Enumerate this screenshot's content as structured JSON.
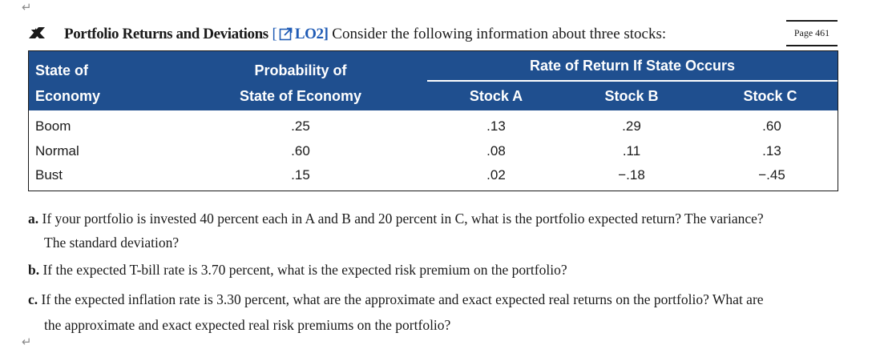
{
  "page_label": "Page 461",
  "heading": {
    "title": "Portfolio Returns and Deviations",
    "lo_open": "[",
    "lo_label": "LO2]",
    "text": "Consider the following information about three stocks:"
  },
  "table": {
    "header": {
      "col0_line1": "State of",
      "col0_line2": "Economy",
      "col1_line1": "Probability of",
      "col1_line2": "State of Economy",
      "group": "Rate of Return If State Occurs",
      "stock_a": "Stock A",
      "stock_b": "Stock B",
      "stock_c": "Stock C"
    },
    "rows": [
      {
        "state": "Boom",
        "prob": ".25",
        "a": ".13",
        "b": ".29",
        "c": ".60"
      },
      {
        "state": "Normal",
        "prob": ".60",
        "a": ".08",
        "b": ".11",
        "c": ".13"
      },
      {
        "state": "Bust",
        "prob": ".15",
        "a": ".02",
        "b": "−.18",
        "c": "−.45"
      }
    ]
  },
  "questions": {
    "a_label": "a.",
    "a_line1": "If your portfolio is invested 40 percent each in A and B and 20 percent in C, what is the portfolio expected return? The variance?",
    "a_line2": "The standard deviation?",
    "b_label": "b.",
    "b_line1": "If the expected T-bill rate is 3.70 percent, what is the expected risk premium on the portfolio?",
    "c_label": "c.",
    "c_line1": "If the expected inflation rate is 3.30 percent, what are the approximate and exact expected real returns on the portfolio? What are",
    "c_line2": "the approximate and exact expected real risk premiums on the portfolio?"
  },
  "icons": {
    "problem": "difficulty-x-icon",
    "link": "external-link-icon",
    "return_mark": "paragraph-return-icon"
  },
  "colors": {
    "table_header_bg": "#1f4f8f",
    "link_blue": "#1f5bb5"
  }
}
